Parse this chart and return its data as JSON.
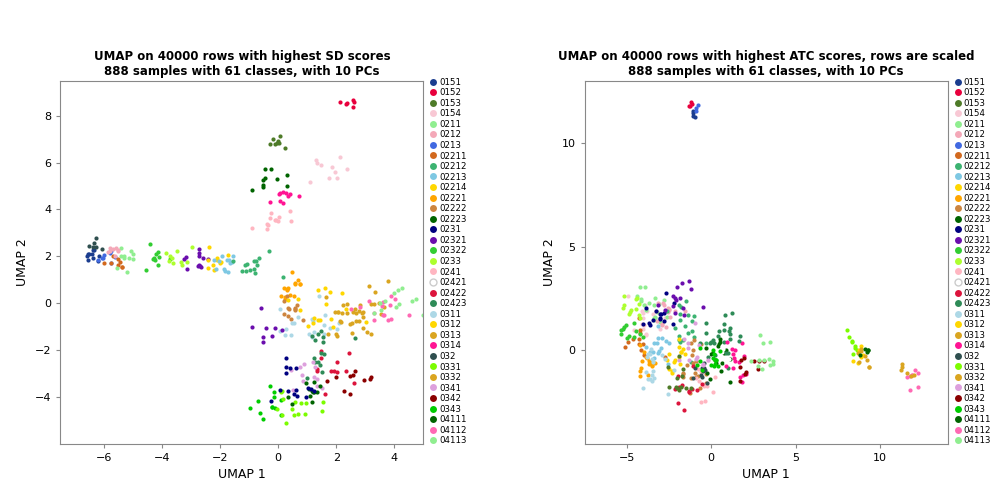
{
  "title1": "UMAP on 40000 rows with highest SD scores\n888 samples with 61 classes, with 10 PCs",
  "title2": "UMAP on 40000 rows with highest ATC scores, rows are scaled\n888 samples with 61 classes, with 10 PCs",
  "xlabel": "UMAP 1",
  "ylabel": "UMAP 2",
  "legend_classes": [
    "0151",
    "0152",
    "0153",
    "0154",
    "0211",
    "0212",
    "0213",
    "02211",
    "02212",
    "02213",
    "02214",
    "02221",
    "02222",
    "02223",
    "0231",
    "02321",
    "02322",
    "0233",
    "0241",
    "02421",
    "02422",
    "02423",
    "0311",
    "0312",
    "0313",
    "0314",
    "032",
    "0331",
    "0332",
    "0341",
    "0342",
    "0343",
    "04111",
    "04112",
    "04113"
  ],
  "legend_colors": [
    "#1B3D8F",
    "#E8003D",
    "#4E7B28",
    "#F8C8D4",
    "#90EE90",
    "#F4A8B8",
    "#4169E1",
    "#D2691E",
    "#3CB371",
    "#7EC8E3",
    "#FFD700",
    "#FFA500",
    "#CD853F",
    "#006400",
    "#000080",
    "#6A0DAD",
    "#32CD32",
    "#ADFF2F",
    "#FFB6C1",
    "#FFFFFF",
    "#DC143C",
    "#2E8B57",
    "#ADD8E6",
    "#FFD700",
    "#DAA520",
    "#FF1493",
    "#2F4F4F",
    "#7CFC00",
    "#DAA520",
    "#DDA0DD",
    "#8B0000",
    "#00CD00",
    "#006400",
    "#FF69B4",
    "#90EE90"
  ],
  "plot1_xlim": [
    -7.5,
    5.0
  ],
  "plot1_ylim": [
    -6.0,
    9.5
  ],
  "plot1_xticks": [
    -6,
    -4,
    -2,
    0,
    2,
    4
  ],
  "plot1_yticks": [
    -4,
    -2,
    0,
    2,
    4,
    6,
    8
  ],
  "plot2_xlim": [
    -7.5,
    14.0
  ],
  "plot2_ylim": [
    -4.5,
    13.0
  ],
  "plot2_xticks": [
    -5,
    0,
    5,
    10
  ],
  "plot2_yticks": [
    0,
    5,
    10
  ]
}
